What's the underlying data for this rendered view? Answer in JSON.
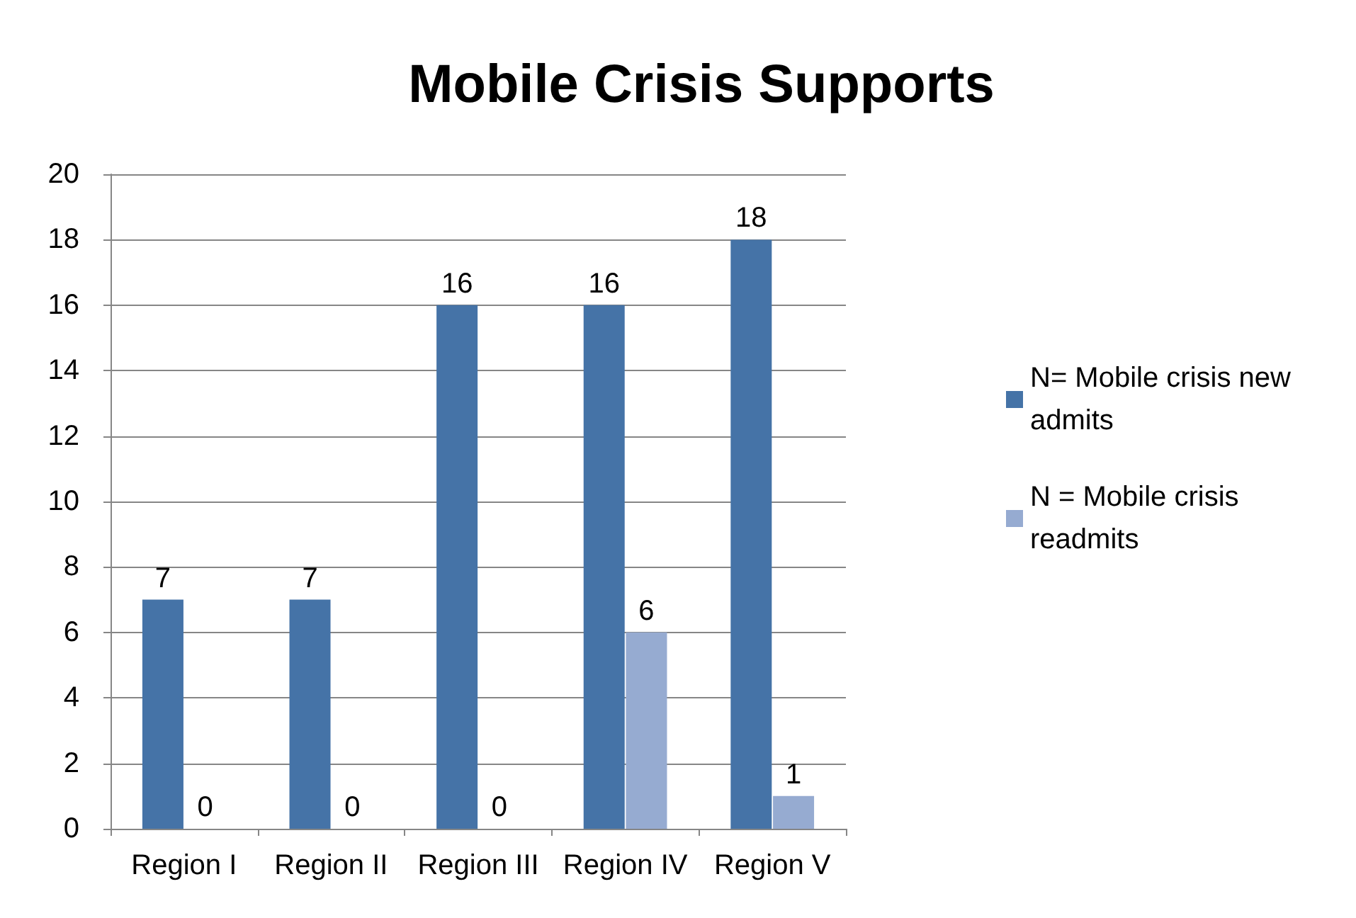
{
  "chart_data": {
    "type": "bar",
    "title": "Mobile Crisis Supports",
    "categories": [
      "Region I",
      "Region II",
      "Region III",
      "Region IV",
      "Region V"
    ],
    "series": [
      {
        "name": "N= Mobile crisis new admits",
        "color": "#4573a7",
        "values": [
          7,
          7,
          16,
          16,
          18
        ]
      },
      {
        "name": "N = Mobile crisis readmits",
        "color": "#96abd1",
        "values": [
          0,
          0,
          0,
          6,
          1
        ]
      }
    ],
    "ylim": [
      0,
      20
    ],
    "yticks": [
      0,
      2,
      4,
      6,
      8,
      10,
      12,
      14,
      16,
      18,
      20
    ],
    "grid": "y",
    "legend": "right",
    "data_labels": true
  }
}
